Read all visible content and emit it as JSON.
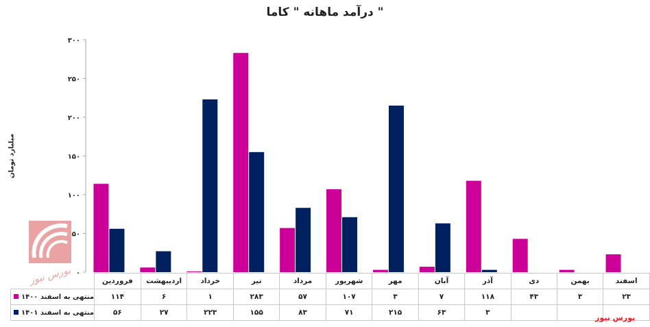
{
  "chart_data": {
    "type": "bar",
    "title": "درآمد ماهانه \" کاما \"",
    "ylabel": "میلیارد تومان",
    "ylim": [
      0,
      300
    ],
    "yticks": [
      "۰",
      "۵۰",
      "۱۰۰",
      "۱۵۰",
      "۲۰۰",
      "۲۵۰",
      "۳۰۰"
    ],
    "yticks_values": [
      0,
      50,
      100,
      150,
      200,
      250,
      300
    ],
    "grid": false,
    "categories": [
      "فروردین",
      "اردیبهشت",
      "خرداد",
      "تیر",
      "مرداد",
      "شهریور",
      "مهر",
      "آبان",
      "آذر",
      "دی",
      "بهمن",
      "اسفند"
    ],
    "series": [
      {
        "name": "منتهی به اسفند ۱۴۰۰",
        "color": "#cc0099",
        "values": [
          114,
          6,
          1,
          283,
          57,
          107,
          3,
          7,
          118,
          43,
          3,
          23
        ],
        "labels": [
          "۱۱۴",
          "۶",
          "۱",
          "۲۸۳",
          "۵۷",
          "۱۰۷",
          "۳",
          "۷",
          "۱۱۸",
          "۴۳",
          "۳",
          "۲۳"
        ]
      },
      {
        "name": "منتهی به اسفند ۱۴۰۱",
        "color": "#002060",
        "values": [
          56,
          27,
          223,
          155,
          83,
          71,
          215,
          63,
          3,
          null,
          null,
          null
        ],
        "labels": [
          "۵۶",
          "۲۷",
          "۲۲۳",
          "۱۵۵",
          "۸۳",
          "۷۱",
          "۲۱۵",
          "۶۳",
          "۳",
          "",
          "",
          ""
        ]
      }
    ]
  },
  "branding": {
    "logo_text": "بورس نیوز",
    "watermark": "بورس نیوز",
    "logo_color": "#e0212a"
  }
}
